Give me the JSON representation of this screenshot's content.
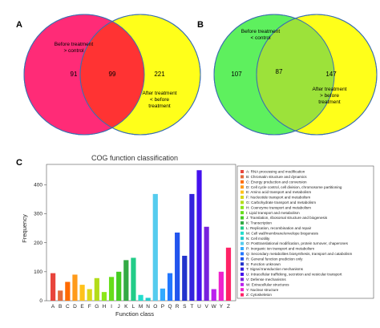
{
  "panel_a": {
    "letter": "A",
    "left_label": [
      "Before treatment",
      "> control"
    ],
    "left_count": "91",
    "overlap_count": "99",
    "right_count": "221",
    "right_label": [
      "After treatment",
      "< before",
      "treatment"
    ],
    "colors": {
      "left": "#ff2b77",
      "right": "#ffff1a",
      "overlap": "#ff3333"
    }
  },
  "panel_b": {
    "letter": "B",
    "top_label": [
      "Before treatment",
      "< control"
    ],
    "left_count": "107",
    "overlap_count": "87",
    "right_count": "147",
    "right_label": [
      "After treatment",
      "> before",
      "treatment"
    ],
    "colors": {
      "left": "#5ef05e",
      "right": "#ffff1a",
      "overlap": "#9ce23a"
    }
  },
  "panel_c": {
    "letter": "C"
  },
  "chart_data": {
    "type": "bar",
    "title": "COG function classification",
    "xlabel": "Function class",
    "ylabel": "Frequency",
    "ylim": [
      0,
      470
    ],
    "yticks": [
      0,
      100,
      200,
      300,
      400
    ],
    "categories": [
      "A",
      "B",
      "C",
      "D",
      "E",
      "F",
      "G",
      "H",
      "I",
      "J",
      "K",
      "L",
      "M",
      "N",
      "O",
      "P",
      "Q",
      "R",
      "S",
      "T",
      "U",
      "V",
      "W",
      "Y",
      "Z"
    ],
    "values": [
      95,
      35,
      65,
      90,
      55,
      40,
      78,
      30,
      82,
      100,
      140,
      148,
      20,
      10,
      368,
      42,
      95,
      235,
      155,
      368,
      450,
      255,
      40,
      100,
      183
    ],
    "colors": [
      "#e8453c",
      "#e36a3c",
      "#ff6a00",
      "#ff9a1a",
      "#ffc21a",
      "#d9d91a",
      "#b3dc1a",
      "#8ce61a",
      "#66dd1a",
      "#44cc22",
      "#33aa44",
      "#22cc88",
      "#22ddcc",
      "#22cccc",
      "#55ccee",
      "#33aaff",
      "#2277ff",
      "#2255ee",
      "#2233cc",
      "#3322dd",
      "#4411ee",
      "#7722dd",
      "#bb22ee",
      "#ee22cc",
      "#ff2266"
    ],
    "legend": [
      "A: RNA processing and modification",
      "B: Chromatin structure and dynamics",
      "C: Energy production and conversion",
      "D: Cell cycle control, cell division, chromosome partitioning",
      "E: Amino acid transport and metabolism",
      "F: Nucleotide transport and metabolism",
      "G: Carbohydrate transport and metabolism",
      "H: Coenzyme transport and metabolism",
      "I: Lipid transport and metabolism",
      "J: Translation, ribosomal structure and biogenesis",
      "K: Transcription",
      "L: Replication, recombination and repair",
      "M: Cell wall/membrane/envelope biogenesis",
      "N: Cell motility",
      "O: Posttranslational modification, protein turnover, chaperones",
      "P: Inorganic ion transport and metabolism",
      "Q: Secondary metabolites biosynthesis, transport and catabolism",
      "R: General function prediction only",
      "S: Function unknown",
      "T: Signal transduction mechanisms",
      "U: Intracellular trafficking, secretion and vesicular transport",
      "V: Defense mechanisms",
      "W: Extracellular structures",
      "Y: Nuclear structure",
      "Z: Cytoskeleton"
    ],
    "legend_position": "right"
  }
}
